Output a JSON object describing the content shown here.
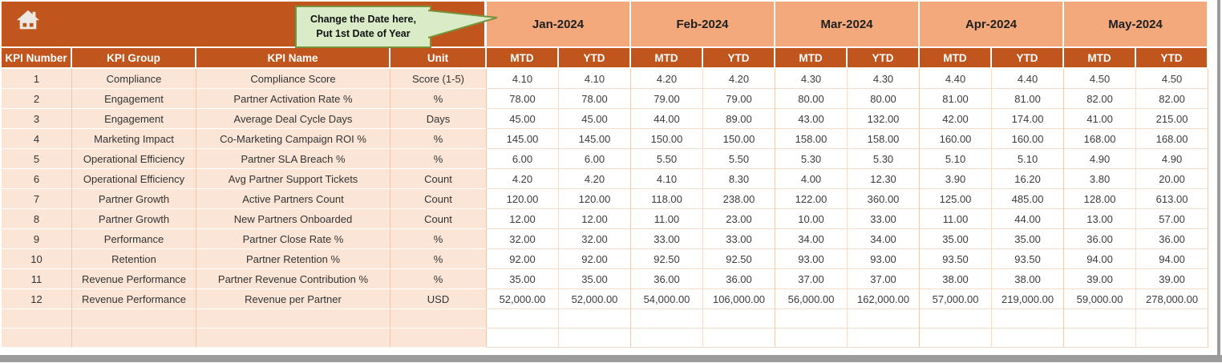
{
  "callout": {
    "line1": "Change the Date here,",
    "line2": "Put 1st Date of Year"
  },
  "colors": {
    "header_rust": "#C0551D",
    "month_band_salmon": "#F4A97C",
    "left_column_peach": "#FBE5D6",
    "callout_fill": "#D9EBC7",
    "callout_border": "#77933C"
  },
  "table": {
    "left_headers": [
      "KPI Number",
      "KPI Group",
      "KPI Name",
      "Unit"
    ],
    "months": [
      "Jan-2024",
      "Feb-2024",
      "Mar-2024",
      "Apr-2024",
      "May-2024"
    ],
    "period_headers": [
      "MTD",
      "YTD"
    ],
    "rows": [
      {
        "number": "1",
        "group": "Compliance",
        "name": "Compliance Score",
        "unit": "Score (1-5)",
        "values": [
          "4.10",
          "4.10",
          "4.20",
          "4.20",
          "4.30",
          "4.30",
          "4.40",
          "4.40",
          "4.50",
          "4.50"
        ]
      },
      {
        "number": "2",
        "group": "Engagement",
        "name": "Partner Activation Rate %",
        "unit": "%",
        "values": [
          "78.00",
          "78.00",
          "79.00",
          "79.00",
          "80.00",
          "80.00",
          "81.00",
          "81.00",
          "82.00",
          "82.00"
        ]
      },
      {
        "number": "3",
        "group": "Engagement",
        "name": "Average Deal Cycle Days",
        "unit": "Days",
        "values": [
          "45.00",
          "45.00",
          "44.00",
          "89.00",
          "43.00",
          "132.00",
          "42.00",
          "174.00",
          "41.00",
          "215.00"
        ]
      },
      {
        "number": "4",
        "group": "Marketing Impact",
        "name": "Co-Marketing Campaign ROI %",
        "unit": "%",
        "values": [
          "145.00",
          "145.00",
          "150.00",
          "150.00",
          "158.00",
          "158.00",
          "160.00",
          "160.00",
          "168.00",
          "168.00"
        ]
      },
      {
        "number": "5",
        "group": "Operational Efficiency",
        "name": "Partner SLA Breach %",
        "unit": "%",
        "values": [
          "6.00",
          "6.00",
          "5.50",
          "5.50",
          "5.30",
          "5.30",
          "5.10",
          "5.10",
          "4.90",
          "4.90"
        ]
      },
      {
        "number": "6",
        "group": "Operational Efficiency",
        "name": "Avg Partner Support Tickets",
        "unit": "Count",
        "values": [
          "4.20",
          "4.20",
          "4.10",
          "8.30",
          "4.00",
          "12.30",
          "3.90",
          "16.20",
          "3.80",
          "20.00"
        ]
      },
      {
        "number": "7",
        "group": "Partner Growth",
        "name": "Active Partners Count",
        "unit": "Count",
        "values": [
          "120.00",
          "120.00",
          "118.00",
          "238.00",
          "122.00",
          "360.00",
          "125.00",
          "485.00",
          "128.00",
          "613.00"
        ]
      },
      {
        "number": "8",
        "group": "Partner Growth",
        "name": "New Partners Onboarded",
        "unit": "Count",
        "values": [
          "12.00",
          "12.00",
          "11.00",
          "23.00",
          "10.00",
          "33.00",
          "11.00",
          "44.00",
          "13.00",
          "57.00"
        ]
      },
      {
        "number": "9",
        "group": "Performance",
        "name": "Partner Close Rate %",
        "unit": "%",
        "values": [
          "32.00",
          "32.00",
          "33.00",
          "33.00",
          "34.00",
          "34.00",
          "35.00",
          "35.00",
          "36.00",
          "36.00"
        ]
      },
      {
        "number": "10",
        "group": "Retention",
        "name": "Partner Retention %",
        "unit": "%",
        "values": [
          "92.00",
          "92.00",
          "92.50",
          "92.50",
          "93.00",
          "93.00",
          "93.50",
          "93.50",
          "94.00",
          "94.00"
        ]
      },
      {
        "number": "11",
        "group": "Revenue Performance",
        "name": "Partner Revenue Contribution %",
        "unit": "%",
        "values": [
          "35.00",
          "35.00",
          "36.00",
          "36.00",
          "37.00",
          "37.00",
          "38.00",
          "38.00",
          "39.00",
          "39.00"
        ]
      },
      {
        "number": "12",
        "group": "Revenue Performance",
        "name": "Revenue per Partner",
        "unit": "USD",
        "values": [
          "52,000.00",
          "52,000.00",
          "54,000.00",
          "106,000.00",
          "56,000.00",
          "162,000.00",
          "57,000.00",
          "219,000.00",
          "59,000.00",
          "278,000.00"
        ]
      }
    ],
    "empty_row_count": 2
  }
}
